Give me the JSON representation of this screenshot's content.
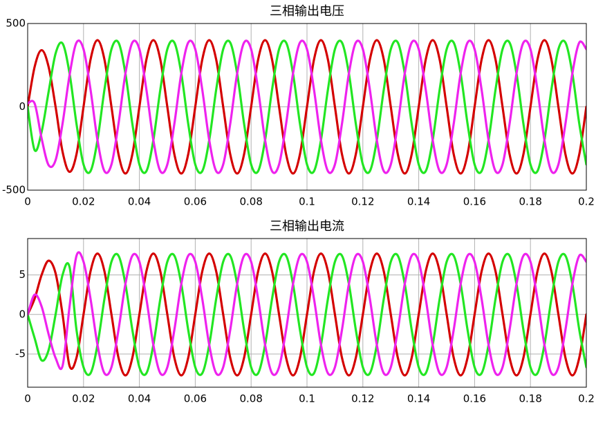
{
  "chart_data": [
    {
      "type": "line",
      "title": "三相输出电压",
      "x": [
        0,
        0.0025,
        0.005,
        0.0075,
        0.01,
        0.0125,
        0.015,
        0.0175,
        0.02,
        0.0225,
        0.025,
        0.0275,
        0.03,
        0.0325,
        0.035,
        0.0375,
        0.04,
        0.0425,
        0.045,
        0.0475,
        0.05,
        0.0525,
        0.055,
        0.0575,
        0.06,
        0.0625,
        0.065,
        0.0675,
        0.07,
        0.0725,
        0.075,
        0.0775,
        0.08,
        0.0825,
        0.085,
        0.0875,
        0.09,
        0.0925,
        0.095,
        0.0975,
        0.1,
        0.1025,
        0.105,
        0.1075,
        0.11,
        0.1125,
        0.115,
        0.1175,
        0.12,
        0.1225,
        0.125,
        0.1275,
        0.13,
        0.1325,
        0.135,
        0.1375,
        0.14,
        0.1425,
        0.145,
        0.1475,
        0.15,
        0.1525,
        0.155,
        0.1575,
        0.16,
        0.1625,
        0.165,
        0.1675,
        0.17,
        0.1725,
        0.175,
        0.1775,
        0.18,
        0.1825,
        0.185,
        0.1875,
        0.19,
        0.1925,
        0.195,
        0.1975,
        0.2
      ],
      "series": [
        {
          "color": "#d40000",
          "values": [
            0,
            240,
            340,
            240,
            0,
            -270,
            -390,
            -283,
            0,
            283,
            400,
            283,
            0,
            -283,
            -400,
            -283,
            0,
            283,
            400,
            283,
            0,
            -283,
            -400,
            -283,
            0,
            283,
            400,
            283,
            0,
            -283,
            -400,
            -283,
            0,
            283,
            400,
            283,
            0,
            -283,
            -400,
            -283,
            0,
            283,
            400,
            283,
            0,
            -283,
            -400,
            -283,
            0,
            283,
            400,
            283,
            0,
            -283,
            -400,
            -283,
            0,
            283,
            400,
            283,
            0,
            -283,
            -400,
            -283,
            0,
            283,
            400,
            283,
            0,
            -283,
            -400,
            -283,
            0,
            283,
            400,
            283,
            0,
            -283,
            -400,
            -283,
            0
          ]
        },
        {
          "color": "#22e622",
          "values": [
            0,
            -260,
            -150,
            90,
            320,
            380,
            200,
            -104,
            -346,
            -386,
            -200,
            104,
            346,
            386,
            200,
            -104,
            -346,
            -386,
            -200,
            104,
            346,
            386,
            200,
            -104,
            -346,
            -386,
            -200,
            104,
            346,
            386,
            200,
            -104,
            -346,
            -386,
            -200,
            104,
            346,
            386,
            200,
            -104,
            -346,
            -386,
            -200,
            104,
            346,
            386,
            200,
            -104,
            -346,
            -386,
            -200,
            104,
            346,
            386,
            200,
            -104,
            -346,
            -386,
            -200,
            104,
            346,
            386,
            200,
            -104,
            -346,
            -386,
            -200,
            104,
            346,
            386,
            200,
            -104,
            -346,
            -386,
            -200,
            104,
            346,
            386,
            200,
            -104,
            -346
          ]
        },
        {
          "color": "#ee22ee",
          "values": [
            20,
            20,
            -190,
            -350,
            -320,
            -100,
            190,
            386,
            346,
            104,
            -200,
            -386,
            -346,
            -104,
            200,
            386,
            346,
            104,
            -200,
            -386,
            -346,
            -104,
            200,
            386,
            346,
            104,
            -200,
            -386,
            -346,
            -104,
            200,
            386,
            346,
            104,
            -200,
            -386,
            -346,
            -104,
            200,
            386,
            346,
            104,
            -200,
            -386,
            -346,
            -104,
            200,
            386,
            346,
            104,
            -200,
            -386,
            -346,
            -104,
            200,
            386,
            346,
            104,
            -200,
            -386,
            -346,
            -104,
            200,
            386,
            346,
            104,
            -200,
            -386,
            -346,
            -104,
            200,
            386,
            346,
            104,
            -200,
            -386,
            -346,
            -104,
            200,
            386,
            346
          ]
        }
      ],
      "xlim": [
        0,
        0.2
      ],
      "xticks": [
        0,
        0.02,
        0.04,
        0.06,
        0.08,
        0.1,
        0.12,
        0.14,
        0.16,
        0.18,
        0.2
      ],
      "ylim": [
        -500,
        500
      ],
      "yticks": [
        -500,
        0,
        500
      ],
      "grid": true
    },
    {
      "type": "line",
      "title": "三相输出电流",
      "x": [
        0,
        0.0025,
        0.005,
        0.0075,
        0.01,
        0.0125,
        0.015,
        0.0175,
        0.02,
        0.0225,
        0.025,
        0.0275,
        0.03,
        0.0325,
        0.035,
        0.0375,
        0.04,
        0.0425,
        0.045,
        0.0475,
        0.05,
        0.0525,
        0.055,
        0.0575,
        0.06,
        0.0625,
        0.065,
        0.0675,
        0.07,
        0.0725,
        0.075,
        0.0775,
        0.08,
        0.0825,
        0.085,
        0.0875,
        0.09,
        0.0925,
        0.095,
        0.0975,
        0.1,
        0.1025,
        0.105,
        0.1075,
        0.11,
        0.1125,
        0.115,
        0.1175,
        0.12,
        0.1225,
        0.125,
        0.1275,
        0.13,
        0.1325,
        0.135,
        0.1375,
        0.14,
        0.1425,
        0.145,
        0.1475,
        0.15,
        0.1525,
        0.155,
        0.1575,
        0.16,
        0.1625,
        0.165,
        0.1675,
        0.17,
        0.1725,
        0.175,
        0.1775,
        0.18,
        0.1825,
        0.185,
        0.1875,
        0.19,
        0.1925,
        0.195,
        0.1975,
        0.2
      ],
      "series": [
        {
          "color": "#d40000",
          "values": [
            0,
            2,
            5,
            6.8,
            5.2,
            0,
            -6.5,
            -5.44,
            0,
            5.44,
            7.7,
            5.44,
            0,
            -5.44,
            -7.7,
            -5.44,
            0,
            5.44,
            7.7,
            5.44,
            0,
            -5.44,
            -7.7,
            -5.44,
            0,
            5.44,
            7.7,
            5.44,
            0,
            -5.44,
            -7.7,
            -5.44,
            0,
            5.44,
            7.7,
            5.44,
            0,
            -5.44,
            -7.7,
            -5.44,
            0,
            5.44,
            7.7,
            5.44,
            0,
            -5.44,
            -7.7,
            -5.44,
            0,
            5.44,
            7.7,
            5.44,
            0,
            -5.44,
            -7.7,
            -5.44,
            0,
            5.44,
            7.7,
            5.44,
            0,
            -5.44,
            -7.7,
            -5.44,
            0,
            5.44,
            7.7,
            5.44,
            0,
            -5.44,
            -7.7,
            -5.44,
            0,
            5.44,
            7.7,
            5.44,
            0,
            -5.44,
            -7.7,
            -5.44,
            0
          ]
        },
        {
          "color": "#22e622",
          "values": [
            0,
            -3,
            -5.8,
            -4.5,
            0,
            5,
            6,
            -1.99,
            -6.67,
            -7.44,
            -3.85,
            1.99,
            6.67,
            7.44,
            3.85,
            -1.99,
            -6.67,
            -7.44,
            -3.85,
            1.99,
            6.67,
            7.44,
            3.85,
            -1.99,
            -6.67,
            -7.44,
            -3.85,
            1.99,
            6.67,
            7.44,
            3.85,
            -1.99,
            -6.67,
            -7.44,
            -3.85,
            1.99,
            6.67,
            7.44,
            3.85,
            -1.99,
            -6.67,
            -7.44,
            -3.85,
            1.99,
            6.67,
            7.44,
            3.85,
            -1.99,
            -6.67,
            -7.44,
            -3.85,
            1.99,
            6.67,
            7.44,
            3.85,
            -1.99,
            -6.67,
            -7.44,
            -3.85,
            1.99,
            6.67,
            7.44,
            3.85,
            -1.99,
            -6.67,
            -7.44,
            -3.85,
            1.99,
            6.67,
            7.44,
            3.85,
            -1.99,
            -6.67,
            -7.44,
            -3.85,
            1.99,
            6.67,
            7.44,
            3.85,
            -1.99,
            -6.67
          ]
        },
        {
          "color": "#ee22ee",
          "values": [
            0,
            2.5,
            1,
            -2.5,
            -5.5,
            -6.5,
            1,
            7.44,
            6.67,
            1.99,
            -3.85,
            -7.44,
            -6.67,
            -1.99,
            3.85,
            7.44,
            6.67,
            1.99,
            -3.85,
            -7.44,
            -6.67,
            -1.99,
            3.85,
            7.44,
            6.67,
            1.99,
            -3.85,
            -7.44,
            -6.67,
            -1.99,
            3.85,
            7.44,
            6.67,
            1.99,
            -3.85,
            -7.44,
            -6.67,
            -1.99,
            3.85,
            7.44,
            6.67,
            1.99,
            -3.85,
            -7.44,
            -6.67,
            -1.99,
            3.85,
            7.44,
            6.67,
            1.99,
            -3.85,
            -7.44,
            -6.67,
            -1.99,
            3.85,
            7.44,
            6.67,
            1.99,
            -3.85,
            -7.44,
            -6.67,
            -1.99,
            3.85,
            7.44,
            6.67,
            1.99,
            -3.85,
            -7.44,
            -6.67,
            -1.99,
            3.85,
            7.44,
            6.67,
            1.99,
            -3.85,
            -7.44,
            -6.67,
            -1.99,
            3.85,
            7.44,
            6.67
          ]
        }
      ],
      "xlim": [
        0,
        0.2
      ],
      "xticks": [
        0,
        0.02,
        0.04,
        0.06,
        0.08,
        0.1,
        0.12,
        0.14,
        0.16,
        0.18,
        0.2
      ],
      "ylim": [
        -9.2,
        9.6
      ],
      "yticks": [
        -5,
        0,
        5
      ],
      "grid": true
    }
  ]
}
